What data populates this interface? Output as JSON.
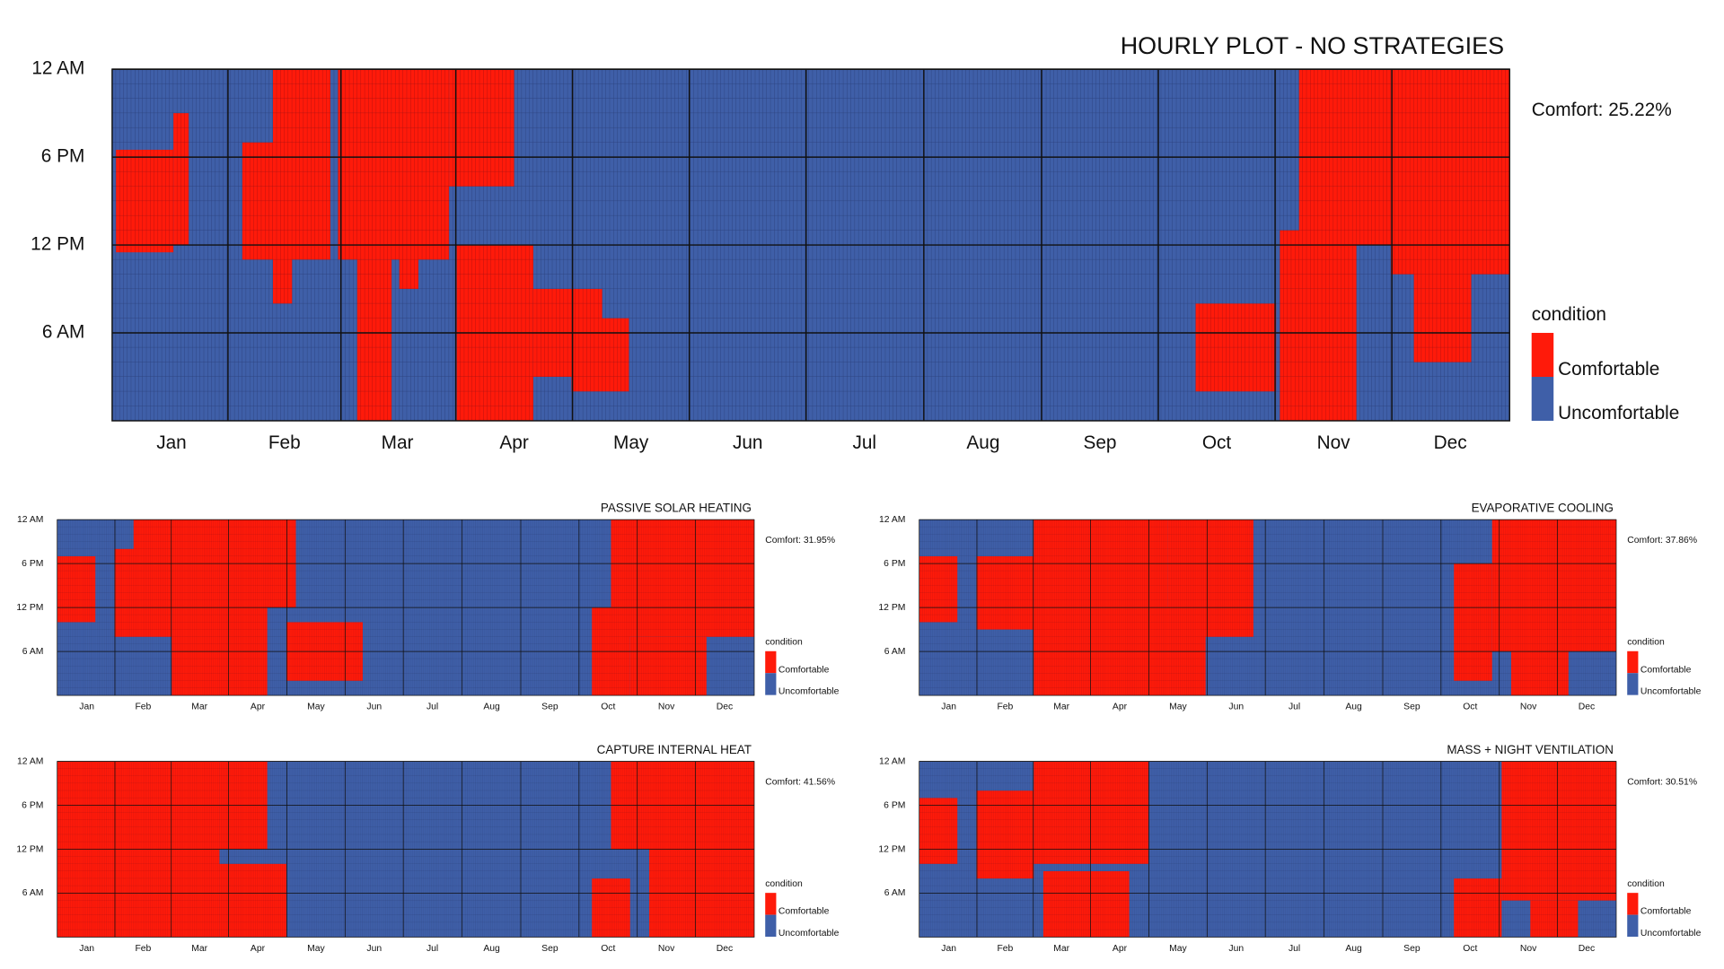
{
  "chart_data": [
    {
      "type": "heatmap",
      "title": "HOURLY PLOT - NO STRATEGIES",
      "annotation": "Comfort: 25.22%",
      "legend_title": "condition",
      "xlim": [
        0,
        365
      ],
      "ylim": [
        0,
        24
      ],
      "xticks": [
        {
          "value": 15.5,
          "label": "Jan"
        },
        {
          "value": 45,
          "label": "Feb"
        },
        {
          "value": 74.5,
          "label": "Mar"
        },
        {
          "value": 105,
          "label": "Apr"
        },
        {
          "value": 135.5,
          "label": "May"
        },
        {
          "value": 166,
          "label": "Jun"
        },
        {
          "value": 196.5,
          "label": "Jul"
        },
        {
          "value": 227.5,
          "label": "Aug"
        },
        {
          "value": 258,
          "label": "Sep"
        },
        {
          "value": 288.5,
          "label": "Oct"
        },
        {
          "value": 319,
          "label": "Nov"
        },
        {
          "value": 349.5,
          "label": "Dec"
        }
      ],
      "yticks": [
        {
          "value": 24,
          "label": "12 AM"
        },
        {
          "value": 18,
          "label": "6 PM"
        },
        {
          "value": 12,
          "label": "12 PM"
        },
        {
          "value": 6,
          "label": "6 AM"
        }
      ],
      "series": [
        {
          "name": "Comfortable",
          "color": "#ff1a0a",
          "blocks": [
            [
              1,
              16,
              11.5,
              18.5
            ],
            [
              16,
              20,
              12,
              21
            ],
            [
              34,
              57,
              11,
              19
            ],
            [
              42,
              57,
              18,
              24
            ],
            [
              42,
              47,
              8,
              12
            ],
            [
              59,
              88,
              11,
              24
            ],
            [
              64,
              73,
              0,
              11
            ],
            [
              75,
              80,
              9,
              12
            ],
            [
              88,
              105,
              16,
              24
            ],
            [
              90,
              110,
              0,
              12
            ],
            [
              110,
              128,
              3,
              9
            ],
            [
              120,
              135,
              2,
              7
            ],
            [
              283,
              304,
              2,
              8
            ],
            [
              305,
              325,
              0,
              13
            ],
            [
              310,
              334,
              12,
              24
            ],
            [
              334,
              365,
              10,
              24
            ],
            [
              340,
              355,
              4,
              12
            ]
          ]
        },
        {
          "name": "Uncomfortable",
          "color": "#3f5fa8"
        }
      ]
    },
    {
      "type": "heatmap",
      "title": "PASSIVE SOLAR HEATING",
      "annotation": "Comfort: 31.95%",
      "legend_title": "condition",
      "xlim": [
        0,
        365
      ],
      "ylim": [
        0,
        24
      ],
      "xticks": [
        {
          "value": 15.5,
          "label": "Jan"
        },
        {
          "value": 45,
          "label": "Feb"
        },
        {
          "value": 74.5,
          "label": "Mar"
        },
        {
          "value": 105,
          "label": "Apr"
        },
        {
          "value": 135.5,
          "label": "May"
        },
        {
          "value": 166,
          "label": "Jun"
        },
        {
          "value": 196.5,
          "label": "Jul"
        },
        {
          "value": 227.5,
          "label": "Aug"
        },
        {
          "value": 258,
          "label": "Sep"
        },
        {
          "value": 288.5,
          "label": "Oct"
        },
        {
          "value": 319,
          "label": "Nov"
        },
        {
          "value": 349.5,
          "label": "Dec"
        }
      ],
      "yticks": [
        {
          "value": 24,
          "label": "12 AM"
        },
        {
          "value": 18,
          "label": "6 PM"
        },
        {
          "value": 12,
          "label": "12 PM"
        },
        {
          "value": 6,
          "label": "6 AM"
        }
      ],
      "series": [
        {
          "name": "Comfortable",
          "color": "#ff1a0a",
          "blocks": [
            [
              0,
              20,
              10,
              19
            ],
            [
              30,
              60,
              8,
              20
            ],
            [
              40,
              125,
              12,
              24
            ],
            [
              60,
              110,
              0,
              12
            ],
            [
              120,
              160,
              2,
              10
            ],
            [
              280,
              300,
              0,
              12
            ],
            [
              290,
              365,
              8,
              24
            ],
            [
              300,
              340,
              0,
              8
            ]
          ]
        },
        {
          "name": "Uncomfortable",
          "color": "#3f5fa8"
        }
      ]
    },
    {
      "type": "heatmap",
      "title": "EVAPORATIVE COOLING",
      "annotation": "Comfort: 37.86%",
      "legend_title": "condition",
      "xlim": [
        0,
        365
      ],
      "ylim": [
        0,
        24
      ],
      "xticks": [
        {
          "value": 15.5,
          "label": "Jan"
        },
        {
          "value": 45,
          "label": "Feb"
        },
        {
          "value": 74.5,
          "label": "Mar"
        },
        {
          "value": 105,
          "label": "Apr"
        },
        {
          "value": 135.5,
          "label": "May"
        },
        {
          "value": 166,
          "label": "Jun"
        },
        {
          "value": 196.5,
          "label": "Jul"
        },
        {
          "value": 227.5,
          "label": "Aug"
        },
        {
          "value": 258,
          "label": "Sep"
        },
        {
          "value": 288.5,
          "label": "Oct"
        },
        {
          "value": 319,
          "label": "Nov"
        },
        {
          "value": 349.5,
          "label": "Dec"
        }
      ],
      "yticks": [
        {
          "value": 24,
          "label": "12 AM"
        },
        {
          "value": 18,
          "label": "6 PM"
        },
        {
          "value": 12,
          "label": "12 PM"
        },
        {
          "value": 6,
          "label": "6 AM"
        }
      ],
      "series": [
        {
          "name": "Comfortable",
          "color": "#ff1a0a",
          "blocks": [
            [
              0,
              20,
              10,
              19
            ],
            [
              30,
              60,
              9,
              19
            ],
            [
              60,
              130,
              6,
              24
            ],
            [
              60,
              150,
              0,
              12
            ],
            [
              130,
              175,
              8,
              24
            ],
            [
              280,
              300,
              2,
              18
            ],
            [
              300,
              365,
              6,
              24
            ],
            [
              310,
              340,
              0,
              6
            ]
          ]
        },
        {
          "name": "Uncomfortable",
          "color": "#3f5fa8"
        }
      ]
    },
    {
      "type": "heatmap",
      "title": "CAPTURE INTERNAL HEAT",
      "annotation": "Comfort: 41.56%",
      "legend_title": "condition",
      "xlim": [
        0,
        365
      ],
      "ylim": [
        0,
        24
      ],
      "xticks": [
        {
          "value": 15.5,
          "label": "Jan"
        },
        {
          "value": 45,
          "label": "Feb"
        },
        {
          "value": 74.5,
          "label": "Mar"
        },
        {
          "value": 105,
          "label": "Apr"
        },
        {
          "value": 135.5,
          "label": "May"
        },
        {
          "value": 166,
          "label": "Jun"
        },
        {
          "value": 196.5,
          "label": "Jul"
        },
        {
          "value": 227.5,
          "label": "Aug"
        },
        {
          "value": 258,
          "label": "Sep"
        },
        {
          "value": 288.5,
          "label": "Oct"
        },
        {
          "value": 319,
          "label": "Nov"
        },
        {
          "value": 349.5,
          "label": "Dec"
        }
      ],
      "yticks": [
        {
          "value": 24,
          "label": "12 AM"
        },
        {
          "value": 18,
          "label": "6 PM"
        },
        {
          "value": 12,
          "label": "12 PM"
        },
        {
          "value": 6,
          "label": "6 AM"
        }
      ],
      "series": [
        {
          "name": "Comfortable",
          "color": "#ff1a0a",
          "blocks": [
            [
              0,
              85,
              0,
              24
            ],
            [
              85,
              120,
              0,
              10
            ],
            [
              85,
              110,
              12,
              24
            ],
            [
              280,
              300,
              0,
              8
            ],
            [
              290,
              365,
              12,
              24
            ],
            [
              310,
              365,
              0,
              24
            ]
          ]
        },
        {
          "name": "Uncomfortable",
          "color": "#3f5fa8"
        }
      ]
    },
    {
      "type": "heatmap",
      "title": "MASS + NIGHT VENTILATION",
      "annotation": "Comfort: 30.51%",
      "legend_title": "condition",
      "xlim": [
        0,
        365
      ],
      "ylim": [
        0,
        24
      ],
      "xticks": [
        {
          "value": 15.5,
          "label": "Jan"
        },
        {
          "value": 45,
          "label": "Feb"
        },
        {
          "value": 74.5,
          "label": "Mar"
        },
        {
          "value": 105,
          "label": "Apr"
        },
        {
          "value": 135.5,
          "label": "May"
        },
        {
          "value": 166,
          "label": "Jun"
        },
        {
          "value": 196.5,
          "label": "Jul"
        },
        {
          "value": 227.5,
          "label": "Aug"
        },
        {
          "value": 258,
          "label": "Sep"
        },
        {
          "value": 288.5,
          "label": "Oct"
        },
        {
          "value": 319,
          "label": "Nov"
        },
        {
          "value": 349.5,
          "label": "Dec"
        }
      ],
      "yticks": [
        {
          "value": 24,
          "label": "12 AM"
        },
        {
          "value": 18,
          "label": "6 PM"
        },
        {
          "value": 12,
          "label": "12 PM"
        },
        {
          "value": 6,
          "label": "6 AM"
        }
      ],
      "series": [
        {
          "name": "Comfortable",
          "color": "#ff1a0a",
          "blocks": [
            [
              0,
              20,
              10,
              19
            ],
            [
              30,
              60,
              8,
              20
            ],
            [
              60,
              120,
              10,
              24
            ],
            [
              65,
              110,
              0,
              9
            ],
            [
              280,
              305,
              0,
              8
            ],
            [
              305,
              365,
              5,
              24
            ],
            [
              320,
              345,
              0,
              5
            ]
          ]
        },
        {
          "name": "Uncomfortable",
          "color": "#3f5fa8"
        }
      ]
    }
  ]
}
